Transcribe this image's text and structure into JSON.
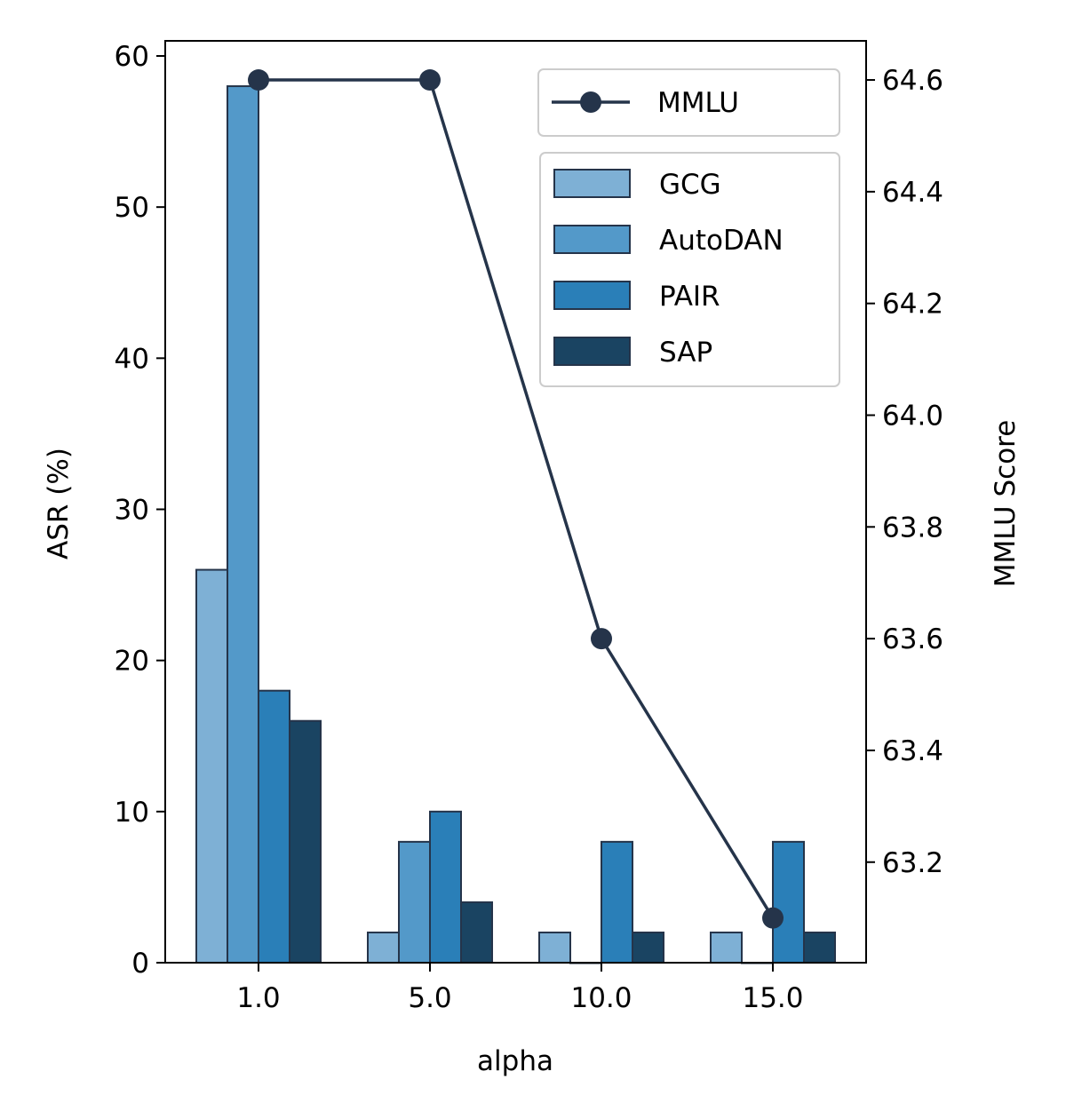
{
  "chart_data": {
    "type": "bar",
    "categories": [
      "1.0",
      "5.0",
      "10.0",
      "15.0"
    ],
    "xlabel": "alpha",
    "ylabel": "ASR (%)",
    "ylim": [
      0,
      61
    ],
    "yticks": [
      0,
      10,
      20,
      30,
      40,
      50,
      60
    ],
    "series": [
      {
        "name": "GCG",
        "values": [
          26,
          2,
          2,
          2
        ],
        "color": "#7eb0d5"
      },
      {
        "name": "AutoDAN",
        "values": [
          58,
          8,
          0,
          0
        ],
        "color": "#5399c9"
      },
      {
        "name": "PAIR",
        "values": [
          18,
          10,
          8,
          8
        ],
        "color": "#2a7fb8"
      },
      {
        "name": "SAP",
        "values": [
          16,
          4,
          2,
          2
        ],
        "color": "#1a4462"
      }
    ],
    "secondary_axis": {
      "type": "line",
      "ylabel": "MMLU Score",
      "ylim": [
        63.02,
        64.67
      ],
      "yticks": [
        "63.2",
        "63.4",
        "63.6",
        "63.8",
        "64.0",
        "64.2",
        "64.4",
        "64.6"
      ],
      "series": [
        {
          "name": "MMLU",
          "values": [
            64.6,
            64.6,
            63.6,
            63.1
          ],
          "color": "#25344a"
        }
      ]
    },
    "legend_line_position": "top-right",
    "legend_bars_position": "upper-right",
    "grid": false,
    "bar_edge_color": "#25344a"
  }
}
